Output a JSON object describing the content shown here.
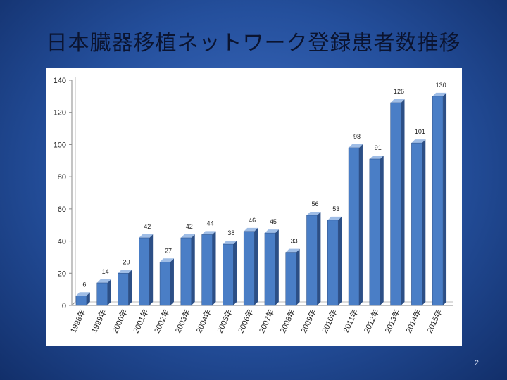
{
  "slide": {
    "title": "日本臓器移植ネットワーク登録患者数推移",
    "page_number": "2"
  },
  "colors": {
    "bar_front": "#4a7ec6",
    "bar_side": "#2c4f86",
    "bar_top": "#9fbde6",
    "background": "#2a57a6"
  },
  "chart_data": {
    "type": "bar",
    "title": "",
    "xlabel": "",
    "ylabel": "",
    "ylim": [
      0,
      140
    ],
    "yticks": [
      0,
      20,
      40,
      60,
      80,
      100,
      120,
      140
    ],
    "grid": false,
    "categories": [
      "1998年",
      "1999年",
      "2000年",
      "2001年",
      "2002年",
      "2003年",
      "2004年",
      "2005年",
      "2006年",
      "2007年",
      "2008年",
      "2009年",
      "2010年",
      "2011年",
      "2012年",
      "2013年",
      "2014年",
      "2015年"
    ],
    "values": [
      6,
      14,
      20,
      42,
      27,
      42,
      44,
      38,
      46,
      45,
      33,
      56,
      53,
      98,
      91,
      126,
      101,
      130
    ],
    "data_labels": [
      "6",
      "14",
      "20",
      "42",
      "27",
      "42",
      "44",
      "38",
      "46",
      "45",
      "33",
      "56",
      "53",
      "98",
      "91",
      "126",
      "101",
      "130"
    ]
  }
}
